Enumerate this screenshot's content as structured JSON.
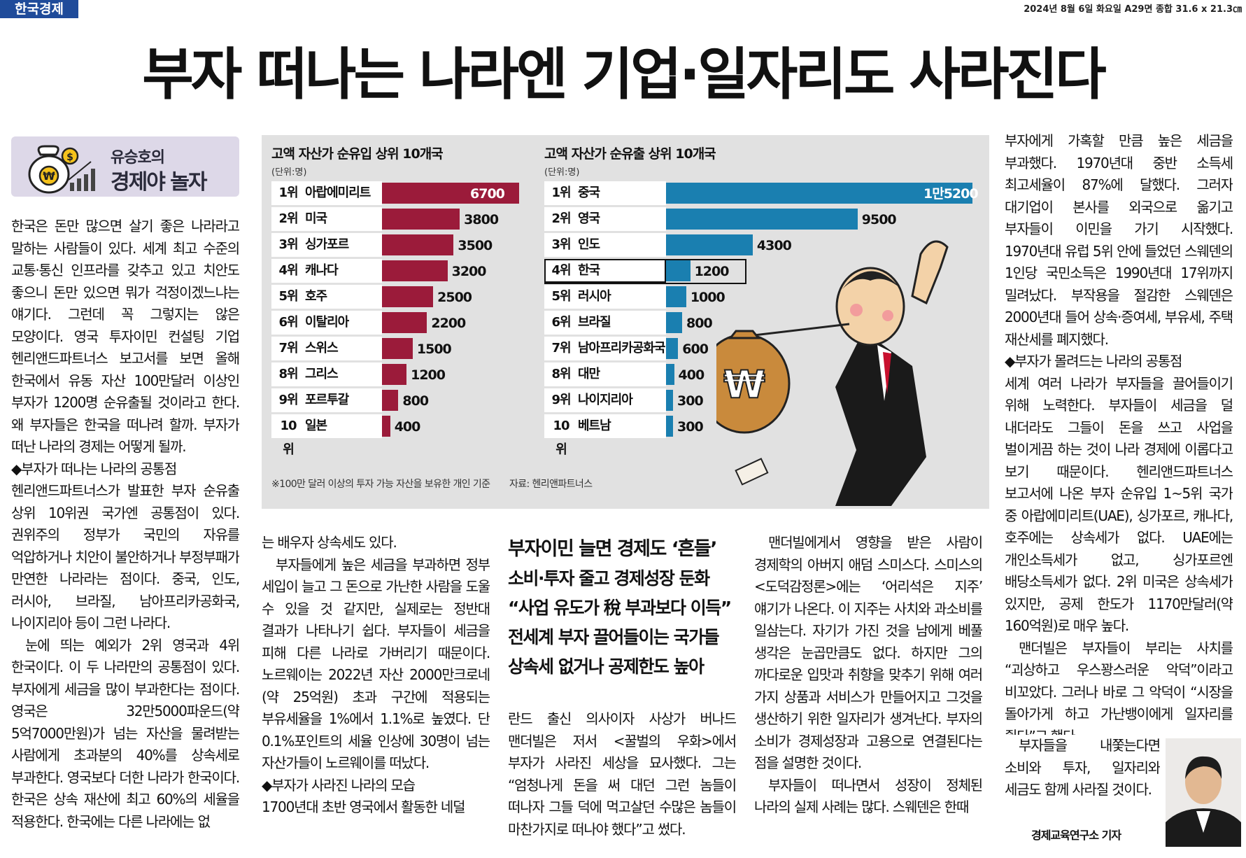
{
  "masthead": {
    "name": "한국경제",
    "dateline": "2024년 8월 6일 화요일 A29면 종합 31.6 x 21.3㎝"
  },
  "headline": "부자 떠나는 나라엔  기업·일자리도 사라진다",
  "column_badge": {
    "author": "유승호의",
    "series": "경제야 놀자"
  },
  "graphic": {
    "inflow": {
      "title": "고액 자산가 순유입 상위 10개국",
      "unit": "(단위:명)",
      "rows": [
        {
          "rank": "1위",
          "country": "아랍에미리트",
          "value": 6700,
          "label": "6700"
        },
        {
          "rank": "2위",
          "country": "미국",
          "value": 3800,
          "label": "3800"
        },
        {
          "rank": "3위",
          "country": "싱가포르",
          "value": 3500,
          "label": "3500"
        },
        {
          "rank": "4위",
          "country": "캐나다",
          "value": 3200,
          "label": "3200"
        },
        {
          "rank": "5위",
          "country": "호주",
          "value": 2500,
          "label": "2500"
        },
        {
          "rank": "6위",
          "country": "이탈리아",
          "value": 2200,
          "label": "2200"
        },
        {
          "rank": "7위",
          "country": "스위스",
          "value": 1500,
          "label": "1500"
        },
        {
          "rank": "8위",
          "country": "그리스",
          "value": 1200,
          "label": "1200"
        },
        {
          "rank": "9위",
          "country": "포르투갈",
          "value": 800,
          "label": "800"
        },
        {
          "rank": "10위",
          "country": "일본",
          "value": 400,
          "label": "400"
        }
      ]
    },
    "outflow": {
      "title": "고액 자산가 순유출 상위 10개국",
      "unit": "(단위:명)",
      "rows": [
        {
          "rank": "1위",
          "country": "중국",
          "value": 15200,
          "label": "1만5200"
        },
        {
          "rank": "2위",
          "country": "영국",
          "value": 9500,
          "label": "9500"
        },
        {
          "rank": "3위",
          "country": "인도",
          "value": 4300,
          "label": "4300"
        },
        {
          "rank": "4위",
          "country": "한국",
          "value": 1200,
          "label": "1200",
          "highlight": true
        },
        {
          "rank": "5위",
          "country": "러시아",
          "value": 1000,
          "label": "1000"
        },
        {
          "rank": "6위",
          "country": "브라질",
          "value": 800,
          "label": "800"
        },
        {
          "rank": "7위",
          "country": "남아프리카공화국",
          "value": 600,
          "label": "600"
        },
        {
          "rank": "8위",
          "country": "대만",
          "value": 400,
          "label": "400"
        },
        {
          "rank": "9위",
          "country": "나이지리아",
          "value": 300,
          "label": "300"
        },
        {
          "rank": "10위",
          "country": "베트남",
          "value": 300,
          "label": "300"
        }
      ]
    },
    "footnote": "※100만 달러 이상의 투자 가능 자산을 보유한 개인 기준",
    "source": "자료: 헨리앤파트너스",
    "colors": {
      "inflow": "#9b1b3a",
      "outflow": "#1a7fb0",
      "bg": "#e1e1e1"
    }
  },
  "chart_data": [
    {
      "type": "bar",
      "title": "고액 자산가 순유입 상위 10개국",
      "ylabel": "(단위:명)",
      "categories": [
        "아랍에미리트",
        "미국",
        "싱가포르",
        "캐나다",
        "호주",
        "이탈리아",
        "스위스",
        "그리스",
        "포르투갈",
        "일본"
      ],
      "values": [
        6700,
        3800,
        3500,
        3200,
        2500,
        2200,
        1500,
        1200,
        800,
        400
      ]
    },
    {
      "type": "bar",
      "title": "고액 자산가 순유출 상위 10개국",
      "ylabel": "(단위:명)",
      "categories": [
        "중국",
        "영국",
        "인도",
        "한국",
        "러시아",
        "브라질",
        "남아프리카공화국",
        "대만",
        "나이지리아",
        "베트남"
      ],
      "values": [
        15200,
        9500,
        4300,
        1200,
        1000,
        800,
        600,
        400,
        300,
        300
      ]
    }
  ],
  "subheads": [
    "부자이민 늘면 경제도 ‘흔들’",
    "소비·투자 줄고 경제성장 둔화",
    "“사업 유도가 稅 부과보다 이득”",
    "전세계 부자 끌어들이는 국가들",
    "상속세 없거나 공제한도 높아"
  ],
  "col1": [
    "한국은 돈만 많으면 살기 좋은 나라라고 말하는 사람들이 있다. 세계 최고 수준의 교통·통신 인프라를 갖추고 있고 치안도 좋으니 돈만 있으면 뭐가 걱정이겠느냐는 얘기다. 그런데 꼭 그렇지는 않은 모양이다. 영국 투자이민 컨설팅 기업 헨리앤드파트너스 보고서를 보면 올해 한국에서 유동 자산 100만달러 이상인 부자가 1200명 순유출될 것이라고 한다. 왜 부자들은 한국을 떠나려 할까. 부자가 떠난 나라의 경제는 어떻게 될까.",
    "◆부자가 떠나는 나라의 공통점",
    "헨리앤드파트너스가 발표한 부자 순유출 상위 10위권 국가엔 공통점이 있다. 권위주의 정부가 국민의 자유를 억압하거나 치안이 불안하거나 부정부패가 만연한 나라라는 점이다. 중국, 인도, 러시아, 브라질, 남아프리카공화국, 나이지리아 등이 그런 나라다.",
    "눈에 띄는 예외가 2위 영국과 4위 한국이다. 이 두 나라만의 공통점이 있다. 부자에게 세금을 많이 부과한다는 점이다. 영국은 32만5000파운드(약 5억7000만원)가 넘는 자산을 물려받는 사람에게 초과분의 40%를 상속세로 부과한다. 영국보다 더한 나라가 한국이다. 한국은 상속 재산에 최고 60%의 세율을 적용한다. 한국에는 다른 나라에는 없"
  ],
  "col2": [
    "는 배우자 상속세도 있다.",
    "부자들에게 높은 세금을 부과하면 정부 세입이 늘고 그 돈으로 가난한 사람을 도울 수 있을 것 같지만, 실제로는 정반대 결과가 나타나기 쉽다. 부자들이 세금을 피해 다른 나라로 가버리기 때문이다. 노르웨이는 2022년 자산 2000만크로네(약 25억원) 초과 구간에 적용되는 부유세율을 1%에서 1.1%로 높였다. 단 0.1%포인트의 세율 인상에 30명이 넘는 자산가들이 노르웨이를 떠났다.",
    "◆부자가 사라진 나라의 모습",
    "1700년대 초반 영국에서 활동한 네덜"
  ],
  "col3": [
    "란드 출신 의사이자 사상가 버나드 맨더빌은 저서 <꿀벌의 우화>에서 부자가 사라진 세상을 묘사했다. 그는 “엄청나게 돈을 써 대던 그런 놈들이 떠나자 그들 덕에 먹고살던 수많은 놈들이 마찬가지로 떠나야 했다”고 썼다."
  ],
  "col4": [
    "맨더빌에게서 영향을 받은 사람이 경제학의 아버지 애덤 스미스다. 스미스의 <도덕감정론>에는 ‘어리석은 지주’ 얘기가 나온다. 이 지주는 사치와 과소비를 일삼는다. 자기가 가진 것을 남에게 베풀 생각은 눈곱만큼도 없다. 하지만 그의 까다로운 입맛과 취향을 맞추기 위해 여러 가지 상품과 서비스가 만들어지고 그것을 생산하기 위한 일자리가 생겨난다. 부자의 소비가 경제성장과 고용으로 연결된다는 점을 설명한 것이다.",
    "부자들이 떠나면서 성장이 정체된 나라의 실제 사례는 많다. 스웨덴은 한때"
  ],
  "col5": [
    "부자에게 가혹할 만큼 높은 세금을 부과했다. 1970년대 중반 소득세 최고세율이 87%에 달했다. 그러자 대기업이 본사를 외국으로 옮기고 부자들이 이민을 가기 시작했다. 1970년대 유럽 5위 안에 들었던 스웨덴의 1인당 국민소득은 1990년대 17위까지 밀려났다. 부작용을 절감한 스웨덴은 2000년대 들어 상속·증여세, 부유세, 주택 재산세를 폐지했다.",
    "◆부자가 몰려드는 나라의 공통점",
    "세계 여러 나라가 부자들을 끌어들이기 위해 노력한다. 부자들이 세금을 덜 내더라도 그들이 돈을 쓰고 사업을 벌이게끔 하는 것이 나라 경제에 이롭다고 보기 때문이다. 헨리앤드파트너스 보고서에 나온 부자 순유입 1~5위 국가 중 아랍에미리트(UAE), 싱가포르, 캐나다, 호주에는 상속세가 없다. UAE에는 개인소득세가 없고, 싱가포르엔 배당소득세가 없다. 2위 미국은 상속세가 있지만, 공제 한도가 1170만달러(약 160억원)로 매우 높다.",
    "맨더빌은 부자들이 부리는 사치를 “괴상하고 우스꽝스러운 악덕”이라고 비꼬았다. 그러나 바로 그 악덕이 “시장을 돌아가게 하고 가난뱅이에게 일자리를 줬다”고 했다."
  ],
  "col5b": "부자들을 내쫓는다면 소비와 투자, 일자리와 세금도 함께 사라질 것이다.",
  "byline": "경제교육연구소 기자"
}
